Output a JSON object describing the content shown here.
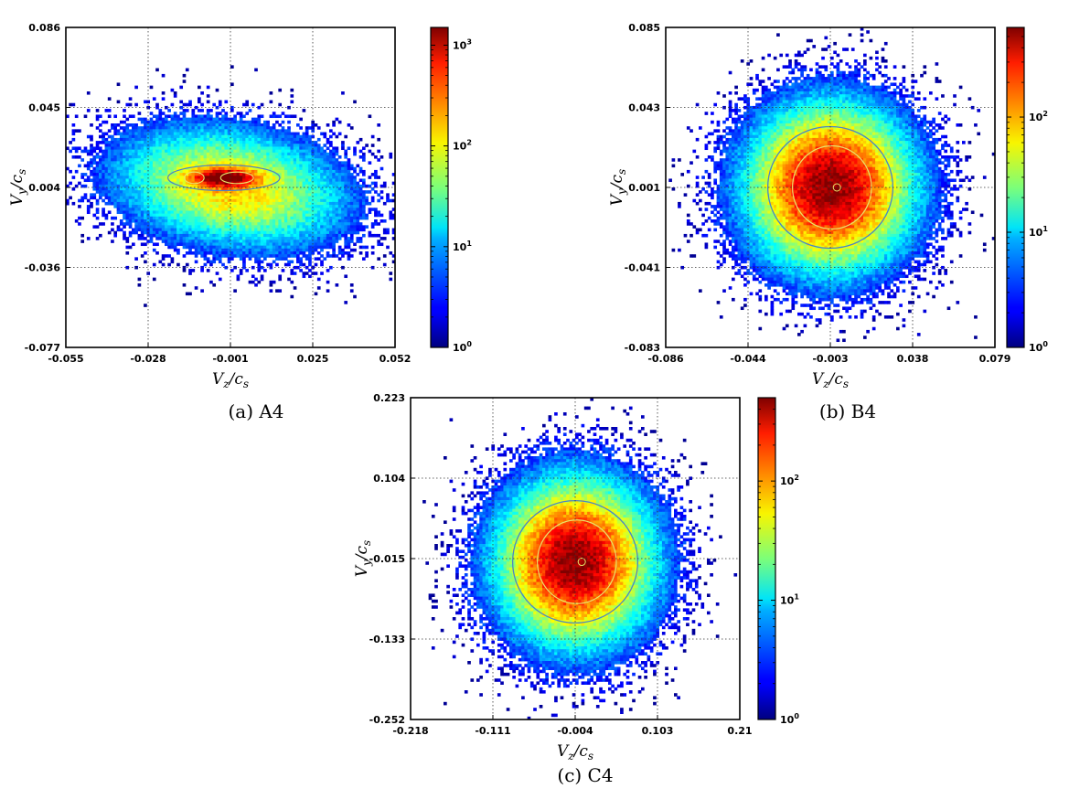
{
  "chart_data": [
    {
      "type": "heatmap",
      "caption": "(a) A4",
      "xlabel": "V_z/c_s",
      "ylabel": "V_y/c_s",
      "xticks": [
        "-0.055",
        "-0.028",
        "-0.001",
        "0.025",
        "0.052"
      ],
      "yticks": [
        "0.086",
        "0.045",
        "0.004",
        "-0.036",
        "-0.077"
      ],
      "xlim": [
        -0.055,
        0.052
      ],
      "ylim": [
        -0.077,
        0.086
      ],
      "color_scale": "log",
      "colorbar_ticks": [
        {
          "base": "10",
          "exp": "0"
        },
        {
          "base": "10",
          "exp": "1"
        },
        {
          "base": "10",
          "exp": "2"
        },
        {
          "base": "10",
          "exp": "3"
        }
      ],
      "colorbar_range": [
        1,
        1500
      ],
      "grid": true,
      "colormap": "jet",
      "distribution": {
        "shape": "elongated horizontal",
        "peak_counts": 1500
      }
    },
    {
      "type": "heatmap",
      "caption": "(b) B4",
      "xlabel": "V_z/c_s",
      "ylabel": "V_y/c_s",
      "xticks": [
        "-0.086",
        "-0.044",
        "-0.003",
        "0.038",
        "0.079"
      ],
      "yticks": [
        "0.085",
        "0.043",
        "0.001",
        "-0.041",
        "-0.083"
      ],
      "xlim": [
        -0.086,
        0.079
      ],
      "ylim": [
        -0.083,
        0.085
      ],
      "color_scale": "log",
      "colorbar_ticks": [
        {
          "base": "10",
          "exp": "0"
        },
        {
          "base": "10",
          "exp": "1"
        },
        {
          "base": "10",
          "exp": "2"
        }
      ],
      "colorbar_range": [
        1,
        600
      ],
      "grid": true,
      "colormap": "jet",
      "distribution": {
        "shape": "round",
        "peak_counts": 600
      }
    },
    {
      "type": "heatmap",
      "caption": "(c) C4",
      "xlabel": "V_z/c_s",
      "ylabel": "V_y/c_s",
      "xticks": [
        "-0.218",
        "-0.111",
        "-0.004",
        "0.103",
        "0.21"
      ],
      "yticks": [
        "0.223",
        "0.104",
        "-0.015",
        "-0.133",
        "-0.252"
      ],
      "xlim": [
        -0.218,
        0.21
      ],
      "ylim": [
        -0.252,
        0.223
      ],
      "color_scale": "log",
      "colorbar_ticks": [
        {
          "base": "10",
          "exp": "0"
        },
        {
          "base": "10",
          "exp": "1"
        },
        {
          "base": "10",
          "exp": "2"
        }
      ],
      "colorbar_range": [
        1,
        500
      ],
      "grid": true,
      "colormap": "jet",
      "distribution": {
        "shape": "round",
        "peak_counts": 500
      }
    }
  ]
}
